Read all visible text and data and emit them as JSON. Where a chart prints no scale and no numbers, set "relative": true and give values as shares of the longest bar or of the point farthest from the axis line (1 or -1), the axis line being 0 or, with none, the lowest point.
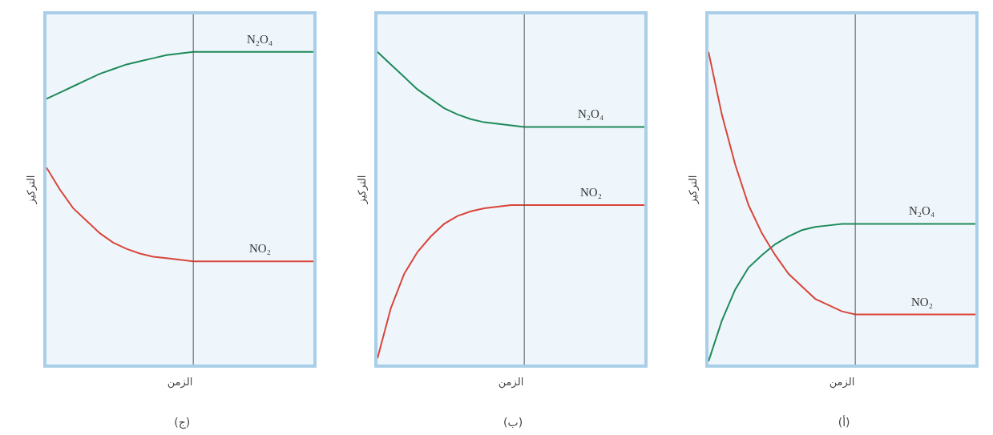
{
  "chart_data": [
    {
      "type": "line",
      "title": "(ج)",
      "xlabel": "الزمن",
      "ylabel": "التركيز",
      "relative": true,
      "legend": false,
      "marker": "none",
      "line_style": "solid",
      "categories": [
        null,
        null,
        null,
        null,
        null,
        null,
        null,
        null,
        null,
        null,
        null,
        null,
        null,
        null,
        null,
        null,
        null,
        null,
        null,
        null,
        null
      ],
      "series": [
        {
          "name": "N₂O₄",
          "color": "#1f8a5a",
          "values": [
            0.85,
            0.87,
            0.89,
            0.91,
            0.93,
            0.945,
            0.96,
            0.97,
            0.98,
            0.99,
            0.995,
            1,
            1,
            1,
            1,
            1,
            1,
            1,
            1,
            1,
            1
          ]
        },
        {
          "name": "NO₂",
          "color": "#d9453a",
          "values": [
            0.63,
            0.56,
            0.5,
            0.46,
            0.42,
            0.39,
            0.37,
            0.355,
            0.345,
            0.34,
            0.335,
            0.33,
            0.33,
            0.33,
            0.33,
            0.33,
            0.33,
            0.33,
            0.33,
            0.33,
            0.33
          ]
        }
      ]
    },
    {
      "type": "line",
      "title": "(ب)",
      "xlabel": "الزمن",
      "ylabel": "التركيز",
      "relative": true,
      "legend": false,
      "marker": "none",
      "line_style": "solid",
      "categories": [
        null,
        null,
        null,
        null,
        null,
        null,
        null,
        null,
        null,
        null,
        null,
        null,
        null,
        null,
        null,
        null,
        null,
        null,
        null,
        null,
        null
      ],
      "series": [
        {
          "name": "N₂O₄",
          "color": "#1f8a5a",
          "values": [
            1,
            0.96,
            0.92,
            0.88,
            0.85,
            0.82,
            0.8,
            0.785,
            0.775,
            0.77,
            0.765,
            0.76,
            0.76,
            0.76,
            0.76,
            0.76,
            0.76,
            0.76,
            0.76,
            0.76,
            0.76
          ]
        },
        {
          "name": "NO₂",
          "color": "#d9453a",
          "values": [
            0.02,
            0.18,
            0.29,
            0.36,
            0.41,
            0.45,
            0.475,
            0.49,
            0.5,
            0.505,
            0.51,
            0.51,
            0.51,
            0.51,
            0.51,
            0.51,
            0.51,
            0.51,
            0.51,
            0.51,
            0.51
          ]
        }
      ]
    },
    {
      "type": "line",
      "title": "(أ)",
      "xlabel": "الزمن",
      "ylabel": "التركيز",
      "relative": true,
      "legend": false,
      "marker": "none",
      "line_style": "solid",
      "categories": [
        null,
        null,
        null,
        null,
        null,
        null,
        null,
        null,
        null,
        null,
        null,
        null,
        null,
        null,
        null,
        null,
        null,
        null,
        null,
        null,
        null
      ],
      "series": [
        {
          "name": "N₂O₄",
          "color": "#1f8a5a",
          "values": [
            0.01,
            0.14,
            0.24,
            0.31,
            0.35,
            0.385,
            0.41,
            0.43,
            0.44,
            0.445,
            0.45,
            0.45,
            0.45,
            0.45,
            0.45,
            0.45,
            0.45,
            0.45,
            0.45,
            0.45,
            0.45
          ]
        },
        {
          "name": "NO₂",
          "color": "#d9453a",
          "values": [
            1,
            0.8,
            0.64,
            0.51,
            0.42,
            0.35,
            0.29,
            0.25,
            0.21,
            0.19,
            0.17,
            0.16,
            0.16,
            0.16,
            0.16,
            0.16,
            0.16,
            0.16,
            0.16,
            0.16,
            0.16
          ]
        }
      ]
    }
  ]
}
